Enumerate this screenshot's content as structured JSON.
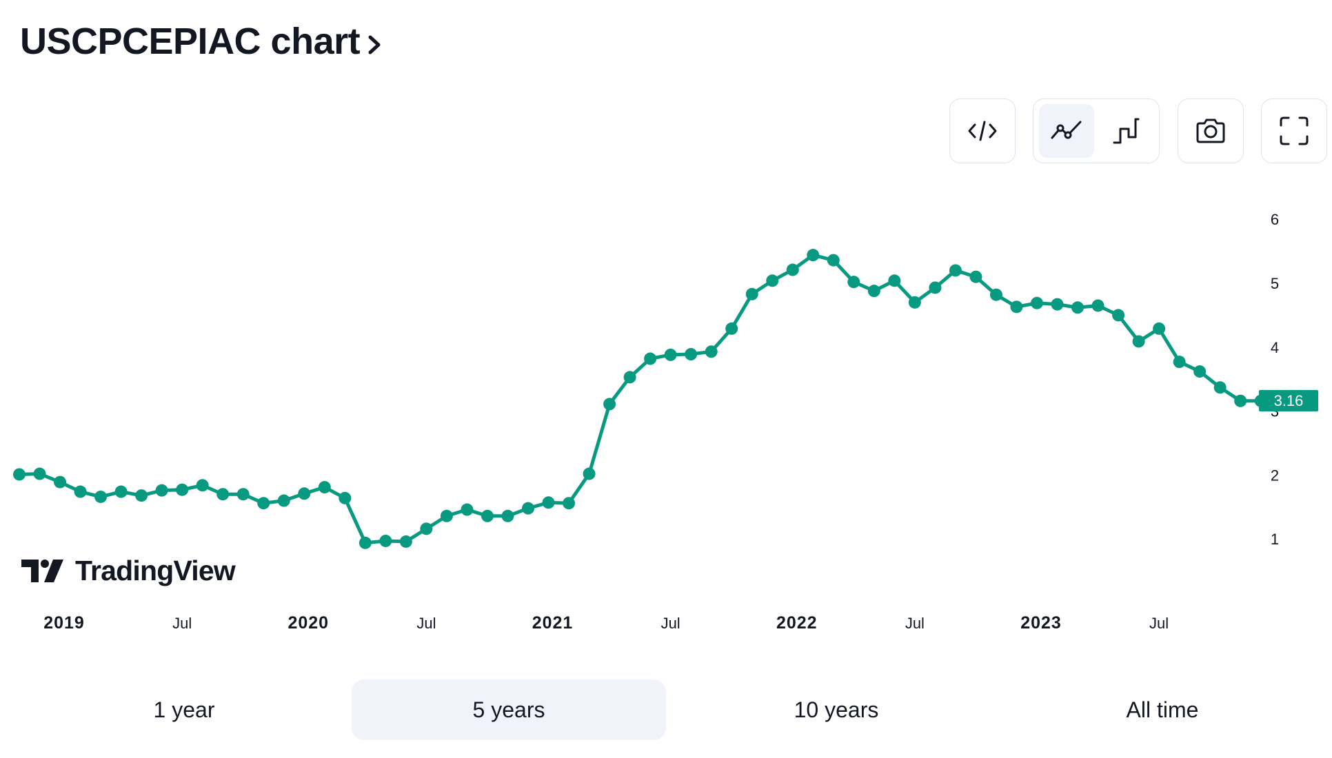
{
  "header": {
    "title": "USCPCEPIAC chart"
  },
  "toolbar": {
    "icons": [
      "code-embed-icon",
      "line-chart-icon",
      "step-line-icon",
      "camera-icon",
      "fullscreen-icon"
    ],
    "active_chart_style": "line"
  },
  "logo": {
    "text": "TradingView"
  },
  "ranges": {
    "items": [
      {
        "label": "1 year"
      },
      {
        "label": "5 years",
        "active": true
      },
      {
        "label": "10 years"
      },
      {
        "label": "All time"
      }
    ]
  },
  "colors": {
    "series": "#089981",
    "text": "#131722",
    "button_border": "#e0e3eb",
    "active_bg": "#f0f3fa"
  },
  "chart_data": {
    "type": "line",
    "title": "",
    "x_axis_labels": [
      {
        "label": "2019",
        "date": "2019-01",
        "bold": true
      },
      {
        "label": "Jul",
        "date": "2019-07"
      },
      {
        "label": "2020",
        "date": "2020-01",
        "bold": true
      },
      {
        "label": "Jul",
        "date": "2020-07"
      },
      {
        "label": "2021",
        "date": "2021-01",
        "bold": true
      },
      {
        "label": "Jul",
        "date": "2021-07"
      },
      {
        "label": "2022",
        "date": "2022-01",
        "bold": true
      },
      {
        "label": "Jul",
        "date": "2022-07"
      },
      {
        "label": "2023",
        "date": "2023-01",
        "bold": true
      },
      {
        "label": "Jul",
        "date": "2023-07"
      }
    ],
    "y_axis_labels": [
      "1",
      "2",
      "3",
      "4",
      "5",
      "6"
    ],
    "ylim": [
      0.2,
      6.5
    ],
    "last_value_label": "3.16",
    "markers": true,
    "series": [
      {
        "x": [
          "2018-11",
          "2018-12",
          "2019-01",
          "2019-02",
          "2019-03",
          "2019-04",
          "2019-05",
          "2019-06",
          "2019-07",
          "2019-08",
          "2019-09",
          "2019-10",
          "2019-11",
          "2019-12",
          "2020-01",
          "2020-02",
          "2020-03",
          "2020-04",
          "2020-05",
          "2020-06",
          "2020-07",
          "2020-08",
          "2020-09",
          "2020-10",
          "2020-11",
          "2020-12",
          "2021-01",
          "2021-02",
          "2021-03",
          "2021-04",
          "2021-05",
          "2021-06",
          "2021-07",
          "2021-08",
          "2021-09",
          "2021-10",
          "2021-11",
          "2021-12",
          "2022-01",
          "2022-02",
          "2022-03",
          "2022-04",
          "2022-05",
          "2022-06",
          "2022-07",
          "2022-08",
          "2022-09",
          "2022-10",
          "2022-11",
          "2022-12",
          "2023-01",
          "2023-02",
          "2023-03",
          "2023-04",
          "2023-05",
          "2023-06",
          "2023-07",
          "2023-08",
          "2023-09",
          "2023-10",
          "2023-11",
          "2023-12"
        ],
        "values": [
          2.01,
          2.02,
          1.89,
          1.74,
          1.66,
          1.74,
          1.68,
          1.76,
          1.77,
          1.84,
          1.7,
          1.7,
          1.56,
          1.6,
          1.71,
          1.81,
          1.64,
          0.94,
          0.97,
          0.96,
          1.16,
          1.36,
          1.46,
          1.36,
          1.36,
          1.48,
          1.57,
          1.56,
          2.02,
          3.11,
          3.53,
          3.82,
          3.88,
          3.89,
          3.93,
          4.29,
          4.83,
          5.04,
          5.21,
          5.44,
          5.36,
          5.02,
          4.88,
          5.04,
          4.7,
          4.93,
          5.2,
          5.1,
          4.82,
          4.63,
          4.69,
          4.67,
          4.62,
          4.65,
          4.5,
          4.09,
          4.29,
          3.77,
          3.62,
          3.37,
          3.16,
          3.16
        ]
      }
    ]
  }
}
